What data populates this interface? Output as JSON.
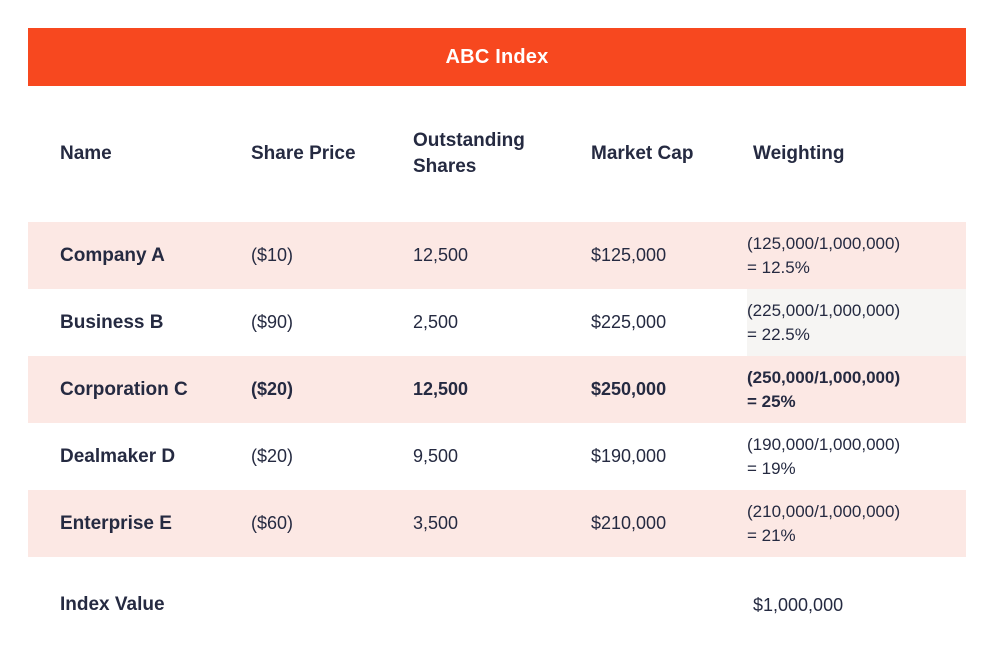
{
  "title": "ABC Index",
  "chart_data": {
    "type": "table",
    "title": "ABC Index",
    "columns": [
      "Name",
      "Share Price",
      "Outstanding Shares",
      "Market Cap",
      "Weighting"
    ],
    "rows": [
      {
        "name": "Company A",
        "share_price": "($10)",
        "outstanding_shares": "12,500",
        "market_cap": "$125,000",
        "weighting_calc": "(125,000/1,000,000)",
        "weighting_result": "= 12.5%",
        "highlighted": true,
        "emphasized": false
      },
      {
        "name": "Business B",
        "share_price": "($90)",
        "outstanding_shares": "2,500",
        "market_cap": "$225,000",
        "weighting_calc": "(225,000/1,000,000)",
        "weighting_result": "= 22.5%",
        "highlighted": false,
        "emphasized": false
      },
      {
        "name": "Corporation C",
        "share_price": "($20)",
        "outstanding_shares": "12,500",
        "market_cap": "$250,000",
        "weighting_calc": "(250,000/1,000,000)",
        "weighting_result": "= 25%",
        "highlighted": true,
        "emphasized": true
      },
      {
        "name": "Dealmaker D",
        "share_price": "($20)",
        "outstanding_shares": "9,500",
        "market_cap": "$190,000",
        "weighting_calc": "(190,000/1,000,000)",
        "weighting_result": "= 19%",
        "highlighted": false,
        "emphasized": false
      },
      {
        "name": "Enterprise E",
        "share_price": "($60)",
        "outstanding_shares": "3,500",
        "market_cap": "$210,000",
        "weighting_calc": "(210,000/1,000,000)",
        "weighting_result": "= 21%",
        "highlighted": true,
        "emphasized": false
      }
    ],
    "footer": {
      "label": "Index Value",
      "value": "$1,000,000"
    }
  },
  "colors": {
    "accent": "#F7481F",
    "row_highlight": "#FCE8E4",
    "text": "#252A41",
    "title_text": "#FFFFFF",
    "card_background": "#FFFFFF",
    "weighting_wash": "#F6F5F3"
  }
}
